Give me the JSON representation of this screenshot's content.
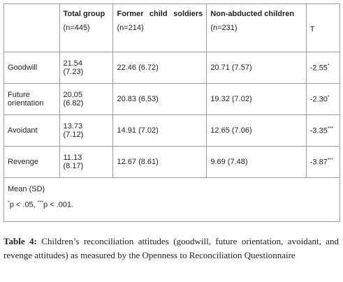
{
  "table": {
    "header": [
      {
        "title": "Total group",
        "n": "(n=445)"
      },
      {
        "title": "Former child soldiers",
        "n": "(n=214)"
      },
      {
        "title": "Non-abducted children",
        "n": "(n=231)"
      },
      {
        "title": "T"
      }
    ],
    "rows": [
      {
        "label": "Goodwill",
        "total": "21.54 (7.23)",
        "former": "22.46 (6.72)",
        "non": "20.71 (7.57)",
        "t": "-2.55",
        "t_sup": "*"
      },
      {
        "label": "Future orientation",
        "total": "20.05 (6.82)",
        "former": "20.83 (6.53)",
        "non": "19.32 (7.02)",
        "t": "-2.30",
        "t_sup": "*"
      },
      {
        "label": "Avoidant",
        "total": "13.73 (7.12)",
        "former": "14.91 (7.02)",
        "non": "12.65 (7.06)",
        "t": "-3.35",
        "t_sup": "***"
      },
      {
        "label": "Revenge",
        "total": "11.13 (8.17)",
        "former": "12.67 (8.61)",
        "non": "9.69 (7.48)",
        "t": "-3.87",
        "t_sup": "***"
      }
    ],
    "note": "Mean (SD)",
    "footnote": [
      {
        "sup": "*"
      },
      {
        "text": "p < .05, "
      },
      {
        "sup": "***"
      },
      {
        "text": "p < .001."
      }
    ]
  },
  "caption": {
    "label": "Table 4:",
    "text": " Children’s reconciliation attitudes (goodwill, future orientation, avoidant, and revenge attitudes) as measured by the Openness to Reconciliation Questionnaire"
  }
}
